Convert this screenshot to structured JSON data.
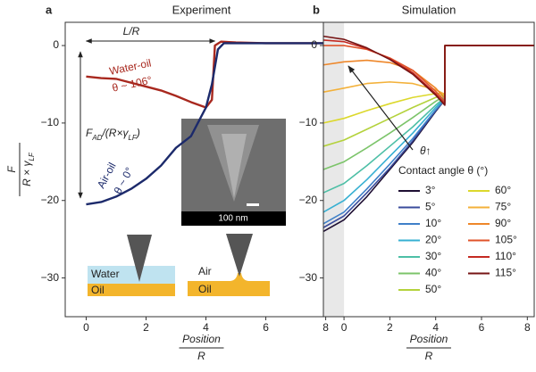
{
  "chart_data": [
    {
      "type": "line",
      "panel_label": "a",
      "title": "Experiment",
      "y_label": {
        "numerator": "F",
        "denominator": [
          "R × γ",
          "LF"
        ]
      },
      "x_label": {
        "numerator": "Position",
        "denominator": "R"
      },
      "xlim": [
        -0.7,
        8.4
      ],
      "ylim": [
        -35,
        3
      ],
      "xticks": [
        0,
        2,
        4,
        6,
        8
      ],
      "yticks": [
        {
          "value": 0,
          "label": "0"
        },
        {
          "value": -10,
          "label": "−10"
        },
        {
          "value": -20,
          "label": "−20"
        },
        {
          "value": -30,
          "label": "−30"
        }
      ],
      "series": [
        {
          "name": "Water-oil",
          "color": "#a8281e",
          "x": [
            0,
            0.5,
            1,
            1.5,
            2,
            2.5,
            3,
            3.5,
            4,
            4.2,
            4.3,
            4.5,
            5,
            6,
            7,
            8,
            8.4
          ],
          "values": [
            -4,
            -4.2,
            -4.3,
            -4.8,
            -5.3,
            -5.8,
            -6.5,
            -7.3,
            -8,
            -7,
            0,
            0.5,
            0.4,
            0.3,
            0.3,
            0.3,
            0.3
          ]
        },
        {
          "name": "Air-oil",
          "color": "#1c2a6b",
          "x": [
            0,
            0.5,
            1,
            1.5,
            2,
            2.5,
            3,
            3.5,
            4,
            4.2,
            4.4,
            4.6,
            5,
            6,
            7,
            8,
            8.4
          ],
          "values": [
            -20.5,
            -20.2,
            -19.5,
            -18.5,
            -17.2,
            -15.5,
            -13.2,
            -11.7,
            -8,
            -5,
            -0.5,
            0.3,
            0.3,
            0.3,
            0.3,
            0.3,
            0.3
          ]
        }
      ],
      "annotations": {
        "length": "L/R",
        "water_angle": "θ ~ 106°",
        "air_angle": "θ ~ 0°",
        "adhesion": [
          "F",
          "AD",
          "/(R×γ",
          "LF",
          ")"
        ],
        "scale_bar": "100 nm",
        "water": "Water",
        "oil_left": "Oil",
        "air": "Air",
        "oil_right": "Oil"
      }
    },
    {
      "type": "line",
      "panel_label": "b",
      "title": "Simulation",
      "x_label": {
        "numerator": "Position",
        "denominator": "R"
      },
      "xlim": [
        -0.9,
        8.3
      ],
      "ylim": [
        -35,
        3
      ],
      "xticks": [
        0,
        2,
        4,
        6,
        8
      ],
      "yticks": [
        {
          "value": 0,
          "label": "0"
        },
        {
          "value": -10,
          "label": "−10"
        },
        {
          "value": -20,
          "label": "−20"
        },
        {
          "value": -30,
          "label": "−30"
        }
      ],
      "shaded_region": [
        -0.9,
        0
      ],
      "legend_title": "Contact angle θ (°)",
      "annotation": "θ↑",
      "x": [
        -0.9,
        0,
        1,
        2,
        3,
        4,
        4.4,
        4.4,
        8.3
      ],
      "series": [
        {
          "name": "3°",
          "color": "#1e0f33",
          "values": [
            -24,
            -22.5,
            -19.5,
            -16,
            -12.5,
            -8.5,
            -7,
            0,
            0
          ]
        },
        {
          "name": "5°",
          "color": "#3a4b9c",
          "values": [
            -23.5,
            -22,
            -19,
            -15.8,
            -12.3,
            -8.4,
            -7,
            0,
            0
          ]
        },
        {
          "name": "10°",
          "color": "#3f80c8",
          "values": [
            -23,
            -21.5,
            -18.5,
            -15.3,
            -12,
            -8.3,
            -7,
            0,
            0
          ]
        },
        {
          "name": "20°",
          "color": "#37b0d2",
          "values": [
            -21.5,
            -20,
            -17.3,
            -14.3,
            -11.3,
            -8,
            -6.8,
            0,
            0
          ]
        },
        {
          "name": "30°",
          "color": "#4dbfa6",
          "values": [
            -19,
            -17.8,
            -15.5,
            -13,
            -10.5,
            -7.7,
            -6.7,
            0,
            0
          ]
        },
        {
          "name": "40°",
          "color": "#7cc46a",
          "values": [
            -16,
            -15,
            -13.2,
            -11.3,
            -9.3,
            -7.2,
            -6.5,
            0,
            0
          ]
        },
        {
          "name": "50°",
          "color": "#b4d23c",
          "values": [
            -13,
            -12.2,
            -10.8,
            -9.4,
            -8,
            -6.7,
            -6.3,
            0,
            0
          ]
        },
        {
          "name": "60°",
          "color": "#dcd82c",
          "values": [
            -10,
            -9.4,
            -8.4,
            -7.5,
            -6.7,
            -6.2,
            -6.2,
            0,
            0
          ]
        },
        {
          "name": "75°",
          "color": "#f3b13a",
          "values": [
            -6,
            -5.5,
            -4.9,
            -4.7,
            -4.9,
            -5.7,
            -6.3,
            0,
            0
          ]
        },
        {
          "name": "90°",
          "color": "#ee872a",
          "values": [
            -2.5,
            -2.1,
            -1.9,
            -2.2,
            -3.2,
            -5.5,
            -6.8,
            0,
            0
          ]
        },
        {
          "name": "105°",
          "color": "#e0532a",
          "values": [
            0,
            0,
            -0.5,
            -1.6,
            -3.2,
            -5.9,
            -7.2,
            0,
            0
          ]
        },
        {
          "name": "110°",
          "color": "#c42a22",
          "values": [
            0.7,
            0.5,
            -0.4,
            -1.7,
            -3.5,
            -6.2,
            -7.5,
            0,
            0
          ]
        },
        {
          "name": "115°",
          "color": "#761414",
          "values": [
            1.2,
            0.8,
            -0.3,
            -1.8,
            -3.7,
            -6.4,
            -7.7,
            0,
            0
          ]
        }
      ]
    }
  ]
}
